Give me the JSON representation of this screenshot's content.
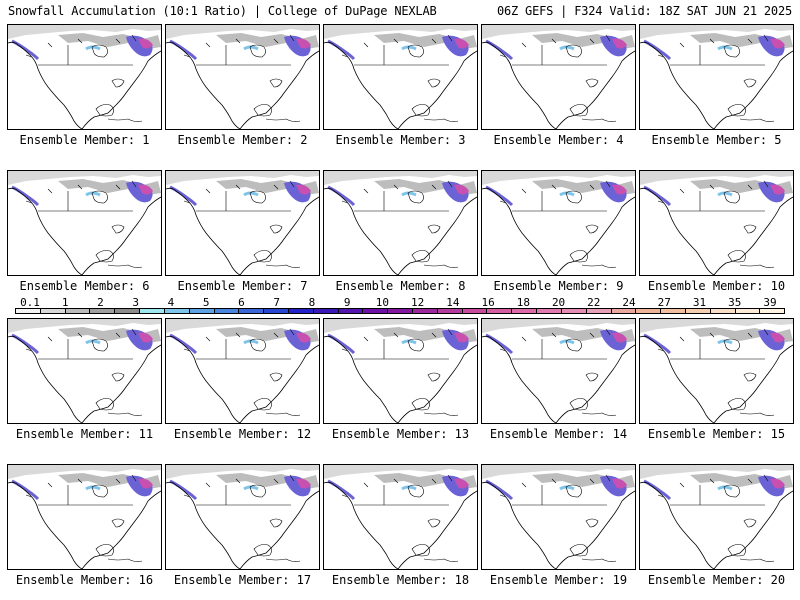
{
  "header": {
    "left": "Snowfall Accumulation (10:1 Ratio) | College of DuPage NEXLAB",
    "right": "06Z GEFS | F324 Valid: 18Z SAT JUN 21 2025"
  },
  "panels": [
    "Ensemble Member: 1",
    "Ensemble Member: 2",
    "Ensemble Member: 3",
    "Ensemble Member: 4",
    "Ensemble Member: 5",
    "Ensemble Member: 6",
    "Ensemble Member: 7",
    "Ensemble Member: 8",
    "Ensemble Member: 9",
    "Ensemble Member: 10",
    "Ensemble Member: 11",
    "Ensemble Member: 12",
    "Ensemble Member: 13",
    "Ensemble Member: 14",
    "Ensemble Member: 15",
    "Ensemble Member: 16",
    "Ensemble Member: 17",
    "Ensemble Member: 18",
    "Ensemble Member: 19",
    "Ensemble Member: 20"
  ],
  "legend": {
    "labels": [
      "0.1",
      "1",
      "2",
      "3",
      "4",
      "5",
      "6",
      "7",
      "8",
      "9",
      "10",
      "12",
      "14",
      "16",
      "18",
      "20",
      "22",
      "24",
      "27",
      "31",
      "35",
      "39"
    ],
    "colors": [
      "#f4f4f4",
      "#d8d8d8",
      "#bcbcbc",
      "#a0a0a0",
      "#8c8c8c",
      "#9ee6f0",
      "#7fc4ea",
      "#5ea2e6",
      "#4a86e0",
      "#3a66d8",
      "#2a46d0",
      "#2222c8",
      "#3a18b8",
      "#5414b0",
      "#6c10a8",
      "#8418a0",
      "#9c289c",
      "#b43c9c",
      "#c84c9c",
      "#d45ca0",
      "#dc6aa8",
      "#e07ab0",
      "#e48cb4",
      "#e8a0b8",
      "#eaa8a0",
      "#eeb498",
      "#f0c0a0",
      "#f4cfb0",
      "#f8dec4",
      "#fcebd8",
      "#fff4e4"
    ]
  }
}
